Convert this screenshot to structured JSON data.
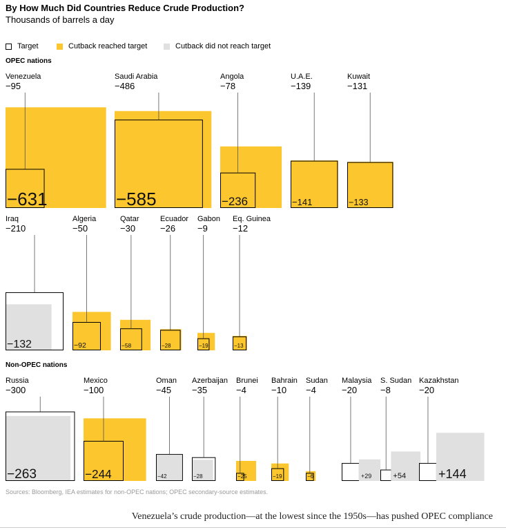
{
  "chart_data": {
    "type": "proportional-square-comparison",
    "title": "By How Much Did Countries Reduce Crude Production?",
    "subtitle": "Thousands of barrels a day",
    "legend": [
      {
        "key": "target",
        "label": "Target"
      },
      {
        "key": "reached",
        "label": "Cutback reached target"
      },
      {
        "key": "notreached",
        "label": "Cutback did not reach target"
      }
    ],
    "colors": {
      "reached": "#fbc62e",
      "notreached": "#e0e0e0",
      "target": "#000000"
    },
    "groups": [
      {
        "label": "OPEC nations",
        "countries": [
          {
            "name": "Venezuela",
            "target": -95,
            "target_label": "−95",
            "actual": -631,
            "actual_label": "−631",
            "status": "reached"
          },
          {
            "name": "Saudi Arabia",
            "target": -486,
            "target_label": "−486",
            "actual": -585,
            "actual_label": "−585",
            "status": "reached"
          },
          {
            "name": "Angola",
            "target": -78,
            "target_label": "−78",
            "actual": -236,
            "actual_label": "−236",
            "status": "reached"
          },
          {
            "name": "U.A.E.",
            "target": -139,
            "target_label": "−139",
            "actual": -141,
            "actual_label": "−141",
            "status": "reached"
          },
          {
            "name": "Kuwait",
            "target": -131,
            "target_label": "−131",
            "actual": -133,
            "actual_label": "−133",
            "status": "reached"
          },
          {
            "name": "Iraq",
            "target": -210,
            "target_label": "−210",
            "actual": -132,
            "actual_label": "−132",
            "status": "notreached"
          },
          {
            "name": "Algeria",
            "target": -50,
            "target_label": "−50",
            "actual": -92,
            "actual_label": "−92",
            "status": "reached"
          },
          {
            "name": "Qatar",
            "target": -30,
            "target_label": "−30",
            "actual": -58,
            "actual_label": "−58",
            "status": "reached"
          },
          {
            "name": "Ecuador",
            "target": -26,
            "target_label": "−26",
            "actual": -28,
            "actual_label": "−28",
            "status": "reached"
          },
          {
            "name": "Gabon",
            "target": -9,
            "target_label": "−9",
            "actual": -19,
            "actual_label": "−19",
            "status": "reached"
          },
          {
            "name": "Eq. Guinea",
            "target": -12,
            "target_label": "−12",
            "actual": -13,
            "actual_label": "−13",
            "status": "reached"
          }
        ]
      },
      {
        "label": "Non-OPEC nations",
        "countries": [
          {
            "name": "Russia",
            "target": -300,
            "target_label": "−300",
            "actual": -263,
            "actual_label": "−263",
            "status": "notreached"
          },
          {
            "name": "Mexico",
            "target": -100,
            "target_label": "−100",
            "actual": -244,
            "actual_label": "−244",
            "status": "reached"
          },
          {
            "name": "Oman",
            "target": -45,
            "target_label": "−45",
            "actual": -42,
            "actual_label": "−42",
            "status": "notreached"
          },
          {
            "name": "Azerbaijan",
            "target": -35,
            "target_label": "−35",
            "actual": -28,
            "actual_label": "−28",
            "status": "notreached"
          },
          {
            "name": "Brunei",
            "target": -4,
            "target_label": "−4",
            "actual": -25,
            "actual_label": "−25",
            "status": "reached"
          },
          {
            "name": "Bahrain",
            "target": -10,
            "target_label": "−10",
            "actual": -19,
            "actual_label": "−19",
            "status": "reached"
          },
          {
            "name": "Sudan",
            "target": -4,
            "target_label": "−4",
            "actual": -6,
            "actual_label": "−6",
            "status": "reached"
          },
          {
            "name": "Malaysia",
            "target": -20,
            "target_label": "−20",
            "actual": 29,
            "actual_label": "+29",
            "status": "notreached"
          },
          {
            "name": "S. Sudan",
            "target": -8,
            "target_label": "−8",
            "actual": 54,
            "actual_label": "+54",
            "status": "notreached"
          },
          {
            "name": "Kazakhstan",
            "target": -20,
            "target_label": "−20",
            "actual": 144,
            "actual_label": "+144",
            "status": "notreached"
          }
        ]
      }
    ]
  },
  "source": "Sources: Bloomberg, IEA estimates for non-OPEC nations; OPEC secondary-source estimates.",
  "caption": "Venezuela’s crude production—at the lowest since the 1950s—has pushed OPEC compliance"
}
